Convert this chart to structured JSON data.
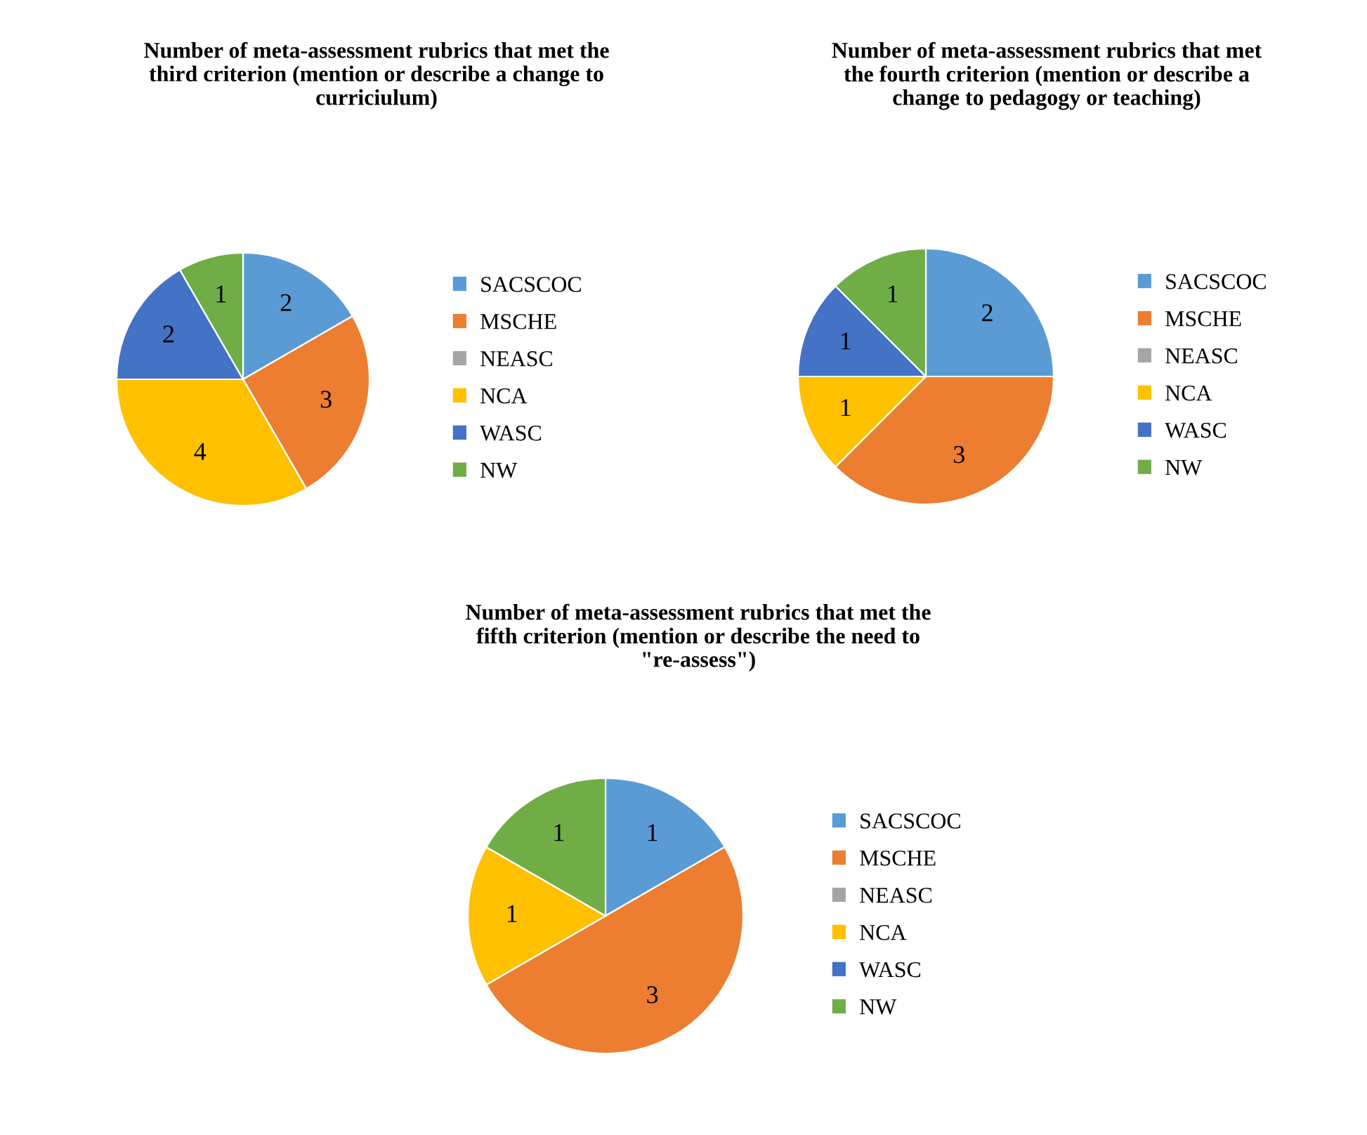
{
  "chart_data": [
    {
      "type": "pie",
      "title": "Number of meta-assessment rubrics that met the third criterion (mention or describe a change to curriciulum)",
      "categories": [
        "SACSCOC",
        "MSCHE",
        "NEASC",
        "NCA",
        "WASC",
        "NW"
      ],
      "values": [
        2,
        3,
        0,
        4,
        2,
        1
      ],
      "value_labels": [
        "2",
        "3",
        null,
        "4",
        "2",
        "1"
      ],
      "colors": [
        "#5b9bd5",
        "#ed7d31",
        "#a5a5a5",
        "#ffc000",
        "#4472c4",
        "#70ad47"
      ],
      "legend": "right"
    },
    {
      "type": "pie",
      "title": "Number of meta-assessment rubrics that met the fourth criterion (mention or describe a change to pedagogy or teaching)",
      "categories": [
        "SACSCOC",
        "MSCHE",
        "NEASC",
        "NCA",
        "WASC",
        "NW"
      ],
      "values": [
        2,
        3,
        0,
        1,
        1,
        1
      ],
      "value_labels": [
        "2",
        "3",
        null,
        "1",
        "1",
        "1"
      ],
      "colors": [
        "#5b9bd5",
        "#ed7d31",
        "#a5a5a5",
        "#ffc000",
        "#4472c4",
        "#70ad47"
      ],
      "legend": "right"
    },
    {
      "type": "pie",
      "title": "Number of meta-assessment rubrics that met the fifth criterion (mention or describe the need to \"re-assess\")",
      "categories": [
        "SACSCOC",
        "MSCHE",
        "NEASC",
        "NCA",
        "WASC",
        "NW"
      ],
      "values": [
        1,
        3,
        0,
        1,
        0,
        1
      ],
      "value_labels": [
        "1",
        "3",
        null,
        "1",
        null,
        "1"
      ],
      "colors": [
        "#5b9bd5",
        "#ed7d31",
        "#a5a5a5",
        "#ffc000",
        "#4472c4",
        "#70ad47"
      ],
      "legend": "right"
    }
  ]
}
